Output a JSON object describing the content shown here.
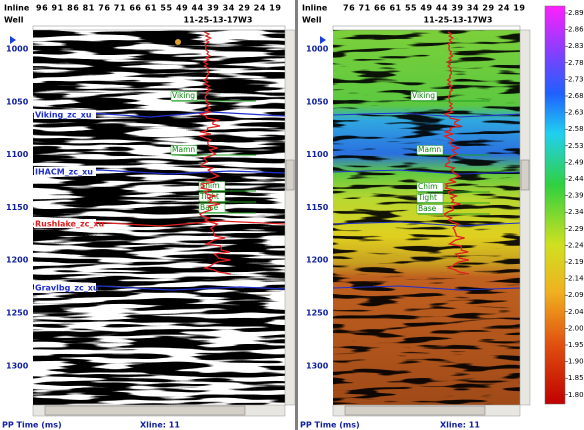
{
  "left_panel": {
    "inline_label": "Inline",
    "well_label": "Well",
    "inline_numbers": "96 91 86 81 76 71 66 61 55 49 44 39 34 29 24 19",
    "well_name": "11-25-13-17W3",
    "times": [
      1000,
      1050,
      1100,
      1150,
      1200,
      1250,
      1300
    ],
    "horizons": [
      "Viking_zc_xu",
      "IHACM_zc_xu",
      "Rushlake_zc_xu",
      "Gravlbg_zc_xu"
    ],
    "markers": [
      "Viking",
      "Mamn",
      "Chim",
      "Tight",
      "Base"
    ]
  },
  "right_panel": {
    "inline_label": "Inline",
    "well_label": "Well",
    "inline_numbers": "76 71 66 61 55 49 44 39 34 29 24 19",
    "well_name": "11-25-13-17W3",
    "times": [
      1000,
      1050,
      1100,
      1150,
      1200,
      1250,
      1300
    ],
    "markers": [
      "Viking",
      "Mamn",
      "Chim",
      "Tight",
      "Base"
    ]
  },
  "color_scale": {
    "labels": [
      "2.89",
      "2.86",
      "2.83",
      "2.78",
      "2.73",
      "2.68",
      "2.63",
      "2.58",
      "2.53",
      "2.49",
      "2.44",
      "2.39",
      "2.34",
      "2.29",
      "2.24",
      "2.19",
      "2.14",
      "2.09",
      "2.04",
      "2.00",
      "1.95",
      "1.90",
      "1.85",
      "1.80"
    ]
  },
  "status": {
    "left": [
      "PP Time (ms)",
      "Xline: 11"
    ],
    "right": [
      "PP Time (ms)",
      "Xline: 11"
    ]
  }
}
